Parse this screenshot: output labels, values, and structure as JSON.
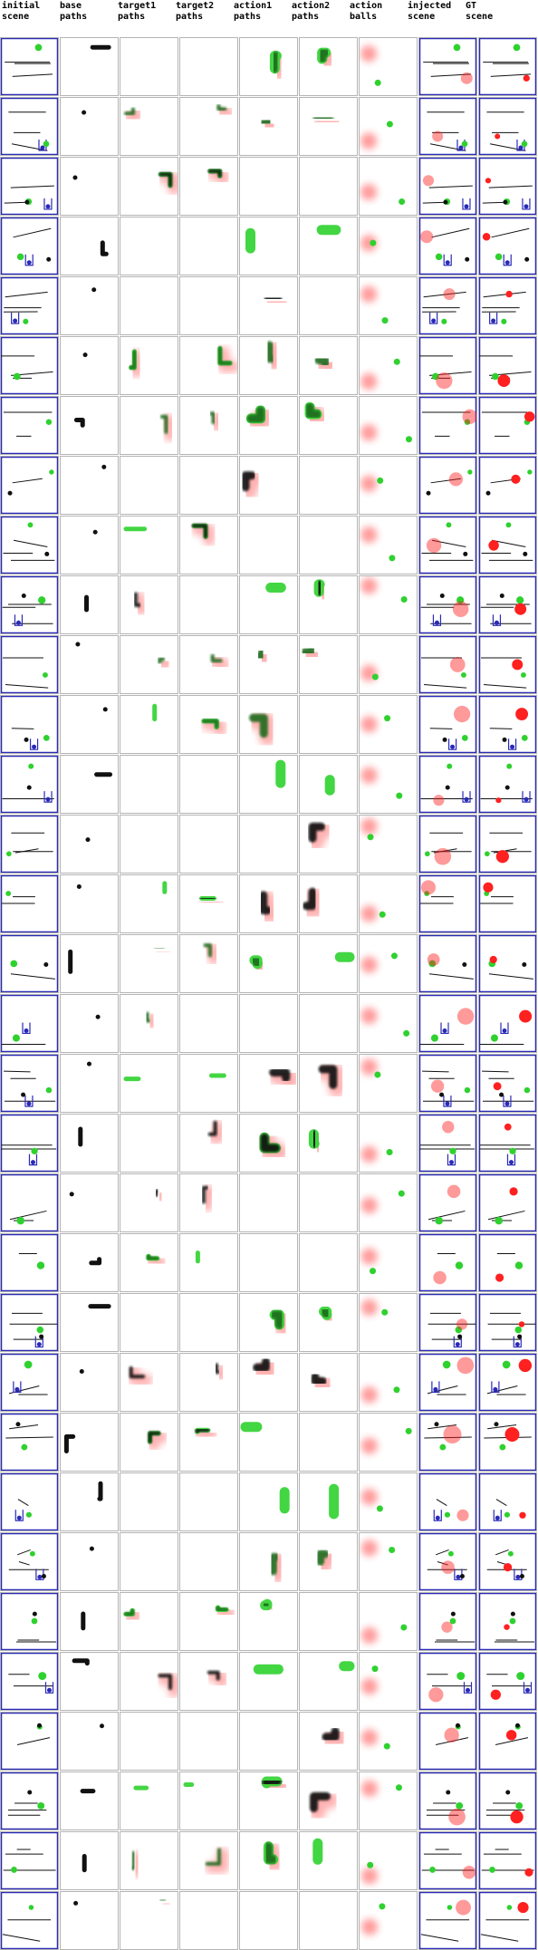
{
  "columns": [
    {
      "line1": "initial",
      "line2": "scene"
    },
    {
      "line1": "base",
      "line2": "paths"
    },
    {
      "line1": "target1",
      "line2": "paths"
    },
    {
      "line1": "target2",
      "line2": "paths"
    },
    {
      "line1": "action1",
      "line2": "paths"
    },
    {
      "line1": "action2",
      "line2": "paths"
    },
    {
      "line1": "action",
      "line2": "balls"
    },
    {
      "line1": "injected",
      "line2": "scene"
    },
    {
      "line1": "GT",
      "line2": "scene"
    }
  ],
  "row_count": 32,
  "colors": {
    "green": "#2fd12f",
    "red": "#ff2020",
    "black": "#111111",
    "blue": "#2a2ab8",
    "pink": "#f4a8a8",
    "border": "#b4b4b4"
  }
}
